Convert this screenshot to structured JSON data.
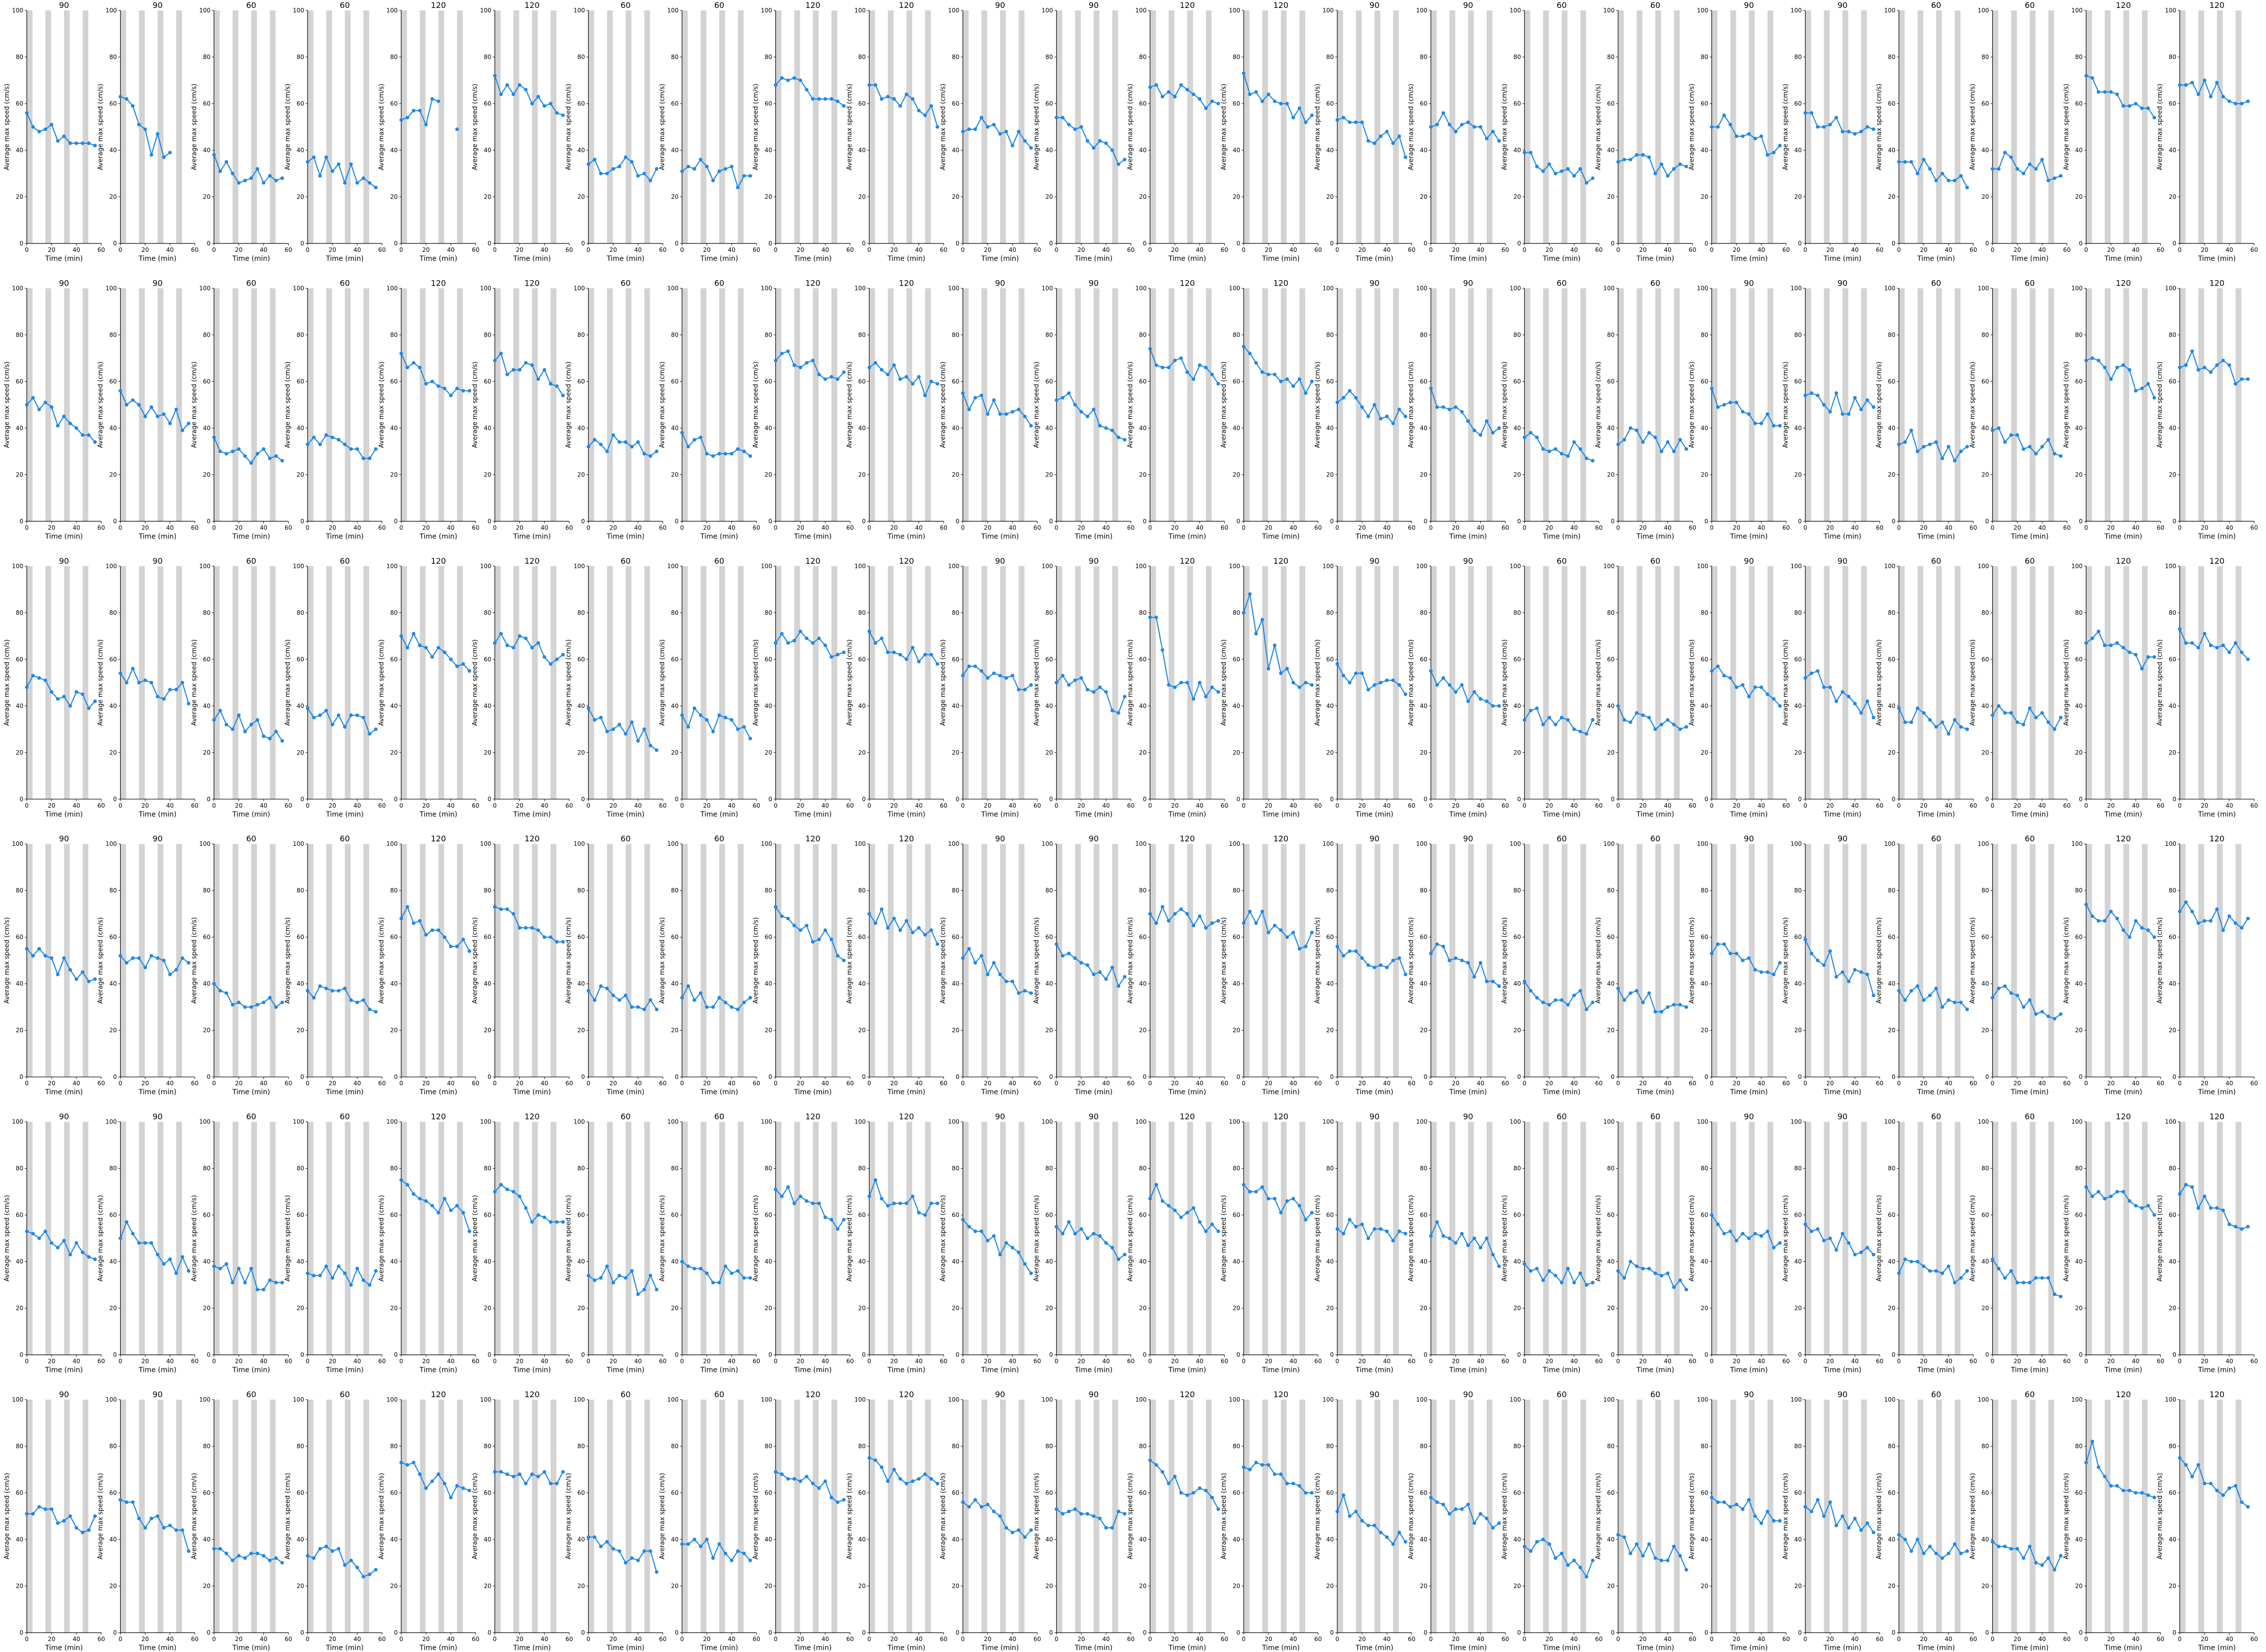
{
  "figure": {
    "rows": 6,
    "cols": 24,
    "row_titles": [
      [
        "90",
        "90",
        "60",
        "60",
        "120",
        "120",
        "60",
        "60",
        "120",
        "120",
        "90",
        "90",
        "120",
        "120",
        "90",
        "90",
        "60",
        "60",
        "90",
        "90",
        "60",
        "60",
        "120",
        "120"
      ],
      [
        "90",
        "90",
        "60",
        "60",
        "120",
        "120",
        "60",
        "60",
        "120",
        "120",
        "90",
        "90",
        "120",
        "120",
        "90",
        "90",
        "60",
        "60",
        "90",
        "90",
        "60",
        "60",
        "120",
        "120"
      ],
      [
        "90",
        "90",
        "60",
        "60",
        "120",
        "120",
        "60",
        "60",
        "120",
        "120",
        "90",
        "90",
        "120",
        "120",
        "90",
        "90",
        "60",
        "60",
        "90",
        "90",
        "60",
        "60",
        "120",
        "120"
      ],
      [
        "90",
        "90",
        "60",
        "60",
        "120",
        "120",
        "60",
        "60",
        "120",
        "120",
        "90",
        "90",
        "120",
        "120",
        "90",
        "90",
        "60",
        "60",
        "90",
        "90",
        "60",
        "60",
        "120",
        "120"
      ],
      [
        "90",
        "90",
        "60",
        "60",
        "120",
        "120",
        "60",
        "60",
        "120",
        "120",
        "90",
        "90",
        "120",
        "120",
        "90",
        "90",
        "60",
        "60",
        "90",
        "90",
        "60",
        "60",
        "120",
        "120"
      ],
      [
        "90",
        "90",
        "60",
        "60",
        "120",
        "120",
        "60",
        "60",
        "120",
        "120",
        "90",
        "90",
        "120",
        "120",
        "90",
        "90",
        "60",
        "60",
        "90",
        "90",
        "60",
        "60",
        "120",
        "120"
      ]
    ]
  },
  "chart_data": {
    "type": "line",
    "panel_grid": "6 rows x 24 columns of small line charts",
    "xlabel": "Time (min)",
    "ylabel": "Average max speed (cm/s)",
    "xlim": [
      0,
      60
    ],
    "ylim": [
      0,
      100
    ],
    "xticks": [
      0,
      20,
      40,
      60
    ],
    "yticks": [
      0,
      20,
      40,
      60,
      80,
      100
    ],
    "x": [
      0,
      5,
      10,
      15,
      20,
      25,
      30,
      35,
      40,
      45,
      50,
      55
    ],
    "series_color": "#1e88e5",
    "background_bands": "alternating grey vertical bands over the time axis",
    "band_color": "#d3d3d3",
    "representative_panels": [
      {
        "row": 1,
        "col": 1,
        "title": "90",
        "values": [
          56,
          50,
          48,
          49,
          51,
          44,
          46,
          43,
          43,
          43,
          43,
          42
        ]
      },
      {
        "row": 1,
        "col": 2,
        "title": "90",
        "values": [
          63,
          62,
          59,
          51,
          49,
          38,
          47,
          37,
          39,
          null,
          null,
          null
        ]
      },
      {
        "row": 1,
        "col": 5,
        "title": "120",
        "values": [
          53,
          54,
          57,
          57,
          51,
          62,
          61,
          null,
          null,
          49,
          null,
          null
        ]
      },
      {
        "row": 1,
        "col": 9,
        "title": "120",
        "values": [
          68,
          71,
          70,
          71,
          70,
          66,
          62,
          62,
          62,
          62,
          61,
          59
        ]
      },
      {
        "row": 2,
        "col": 14,
        "title": "120",
        "values": [
          75,
          72,
          68,
          64,
          63,
          63,
          60,
          61,
          58,
          61,
          55,
          60
        ]
      },
      {
        "row": 3,
        "col": 13,
        "title": "120",
        "values": [
          78,
          78,
          64,
          49,
          48,
          50,
          50,
          43,
          50,
          44,
          48,
          46
        ]
      },
      {
        "row": 3,
        "col": 14,
        "title": "120",
        "values": [
          80,
          88,
          71,
          77,
          56,
          66,
          54,
          56,
          50,
          48,
          50,
          49
        ]
      },
      {
        "row": 4,
        "col": 6,
        "title": "120",
        "values": [
          73,
          72,
          72,
          70,
          64,
          64,
          64,
          63,
          60,
          60,
          58,
          58
        ]
      },
      {
        "row": 5,
        "col": 6,
        "title": "120",
        "values": [
          70,
          73,
          71,
          70,
          68,
          63,
          57,
          60,
          59,
          57,
          57,
          57
        ]
      },
      {
        "row": 6,
        "col": 23,
        "title": "120",
        "values": [
          73,
          82,
          71,
          67,
          63,
          63,
          61,
          61,
          60,
          60,
          59,
          58
        ]
      }
    ]
  }
}
